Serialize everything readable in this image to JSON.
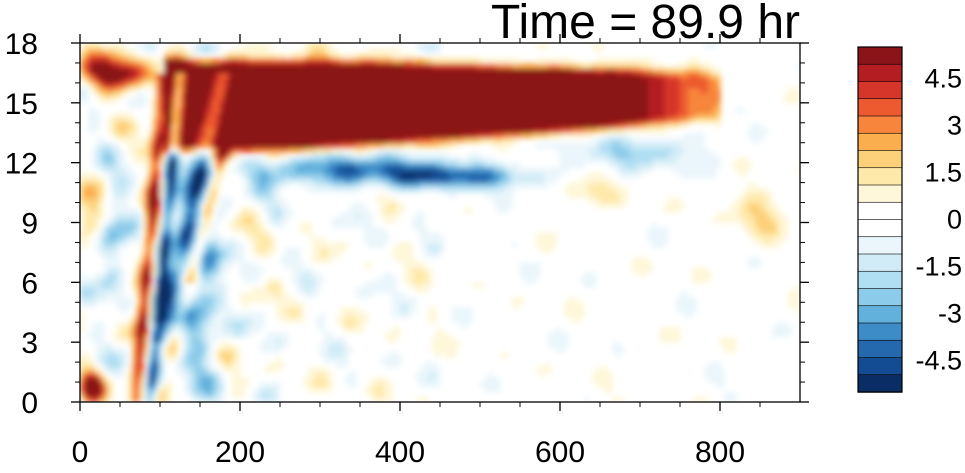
{
  "chart_data": {
    "type": "heatmap",
    "title": "Time = 89.9 hr",
    "xlabel": "",
    "ylabel": "",
    "xlim": [
      0,
      900
    ],
    "ylim": [
      0,
      18
    ],
    "x_ticks": [
      "0",
      "200",
      "400",
      "600",
      "800"
    ],
    "y_ticks": [
      "0",
      "3",
      "6",
      "9",
      "12",
      "15",
      "18"
    ],
    "x_tick_values": [
      0,
      200,
      400,
      600,
      800
    ],
    "y_tick_values": [
      0,
      3,
      6,
      9,
      12,
      15,
      18
    ],
    "colorbar": {
      "labels": [
        "4.5",
        "3",
        "1.5",
        "0",
        "-1.5",
        "-3",
        "-4.5"
      ],
      "label_values": [
        4.5,
        3,
        1.5,
        0,
        -1.5,
        -3,
        -4.5
      ],
      "range": [
        -5.5,
        5.5
      ],
      "colors": [
        "#8a1418",
        "#b41d22",
        "#d6362a",
        "#ee5a2f",
        "#f7853b",
        "#fbae4e",
        "#fdd07a",
        "#fee9aa",
        "#fff7d9",
        "#ffffff",
        "#ffffff",
        "#eaf6fb",
        "#d2ecf7",
        "#b0def2",
        "#8ccbe9",
        "#62b0dc",
        "#3d8cc8",
        "#2468ad",
        "#134c92",
        "#0b2d66"
      ]
    },
    "features": [
      {
        "name": "upper warm band",
        "x_range": [
          100,
          800
        ],
        "y_range": [
          13,
          17
        ],
        "peak": 6
      },
      {
        "name": "cool band beneath",
        "x_range": [
          200,
          650
        ],
        "y_range": [
          10.5,
          12.5
        ],
        "peak": -4
      },
      {
        "name": "warm slanted front",
        "x_range": [
          80,
          120
        ],
        "y_range": [
          0,
          16
        ],
        "peak": 5
      },
      {
        "name": "cool slanted front",
        "x_range": [
          100,
          220
        ],
        "y_range": [
          0,
          16
        ],
        "peak": -4.5
      },
      {
        "name": "warm spot near origin",
        "x": 15,
        "y": 0.8,
        "peak": 5
      }
    ]
  }
}
